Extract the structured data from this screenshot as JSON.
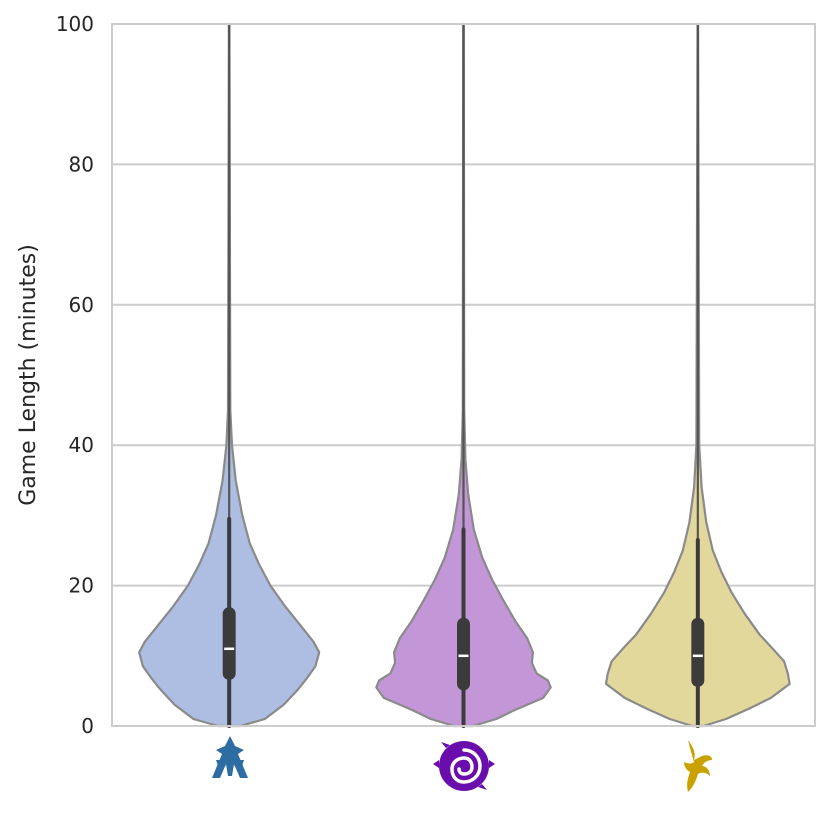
{
  "chart_data": {
    "type": "violin",
    "title": "",
    "xlabel": "",
    "ylabel": "Game Length (minutes)",
    "ylim": [
      0,
      100
    ],
    "yticks": [
      0,
      20,
      40,
      60,
      80,
      100
    ],
    "grid": "horizontal",
    "legend": "none",
    "categories": [
      "terran-icon",
      "zerg-icon",
      "protoss-icon"
    ],
    "series": [
      {
        "category": "terran-icon",
        "color": "#aebde2",
        "icon_color": "#2e6da4",
        "quartiles": [
          7.5,
          11,
          16
        ],
        "whisker": [
          0,
          29.5
        ],
        "max": 100,
        "profile": [
          [
            0,
            0.12
          ],
          [
            1,
            0.38
          ],
          [
            3,
            0.58
          ],
          [
            5,
            0.72
          ],
          [
            5.8,
            0.77
          ],
          [
            7,
            0.84
          ],
          [
            8.5,
            0.92
          ],
          [
            10.5,
            0.96
          ],
          [
            12,
            0.9
          ],
          [
            14,
            0.78
          ],
          [
            17,
            0.6
          ],
          [
            20,
            0.44
          ],
          [
            23,
            0.32
          ],
          [
            26,
            0.22
          ],
          [
            30,
            0.14
          ],
          [
            35,
            0.07
          ],
          [
            40,
            0.03
          ],
          [
            45,
            0.012
          ],
          [
            100,
            0.003
          ]
        ]
      },
      {
        "category": "zerg-icon",
        "color": "#c396d8",
        "icon_color": "#6a0dad",
        "quartiles": [
          6,
          10,
          14.5
        ],
        "whisker": [
          0,
          28
        ],
        "max": 100,
        "profile": [
          [
            0,
            0.1
          ],
          [
            1,
            0.35
          ],
          [
            2.3,
            0.55
          ],
          [
            4,
            0.85
          ],
          [
            5.5,
            0.93
          ],
          [
            6.5,
            0.9
          ],
          [
            7.5,
            0.78
          ],
          [
            9,
            0.73
          ],
          [
            10.5,
            0.74
          ],
          [
            12.5,
            0.68
          ],
          [
            15,
            0.55
          ],
          [
            18,
            0.42
          ],
          [
            21,
            0.3
          ],
          [
            24,
            0.2
          ],
          [
            28,
            0.11
          ],
          [
            33,
            0.05
          ],
          [
            38,
            0.02
          ],
          [
            45,
            0.008
          ],
          [
            100,
            0.003
          ]
        ]
      },
      {
        "category": "protoss-icon",
        "color": "#e3d89b",
        "icon_color": "#c9a200",
        "quartiles": [
          6.5,
          10,
          14.5
        ],
        "whisker": [
          0,
          26.5
        ],
        "max": 100,
        "profile": [
          [
            0,
            0.06
          ],
          [
            1,
            0.3
          ],
          [
            2.5,
            0.55
          ],
          [
            4,
            0.78
          ],
          [
            6,
            0.98
          ],
          [
            7.5,
            0.96
          ],
          [
            9.2,
            0.92
          ],
          [
            11,
            0.8
          ],
          [
            13,
            0.66
          ],
          [
            16,
            0.5
          ],
          [
            19,
            0.36
          ],
          [
            22,
            0.25
          ],
          [
            25,
            0.16
          ],
          [
            29,
            0.09
          ],
          [
            34,
            0.04
          ],
          [
            40,
            0.015
          ],
          [
            100,
            0.003
          ]
        ]
      }
    ]
  }
}
